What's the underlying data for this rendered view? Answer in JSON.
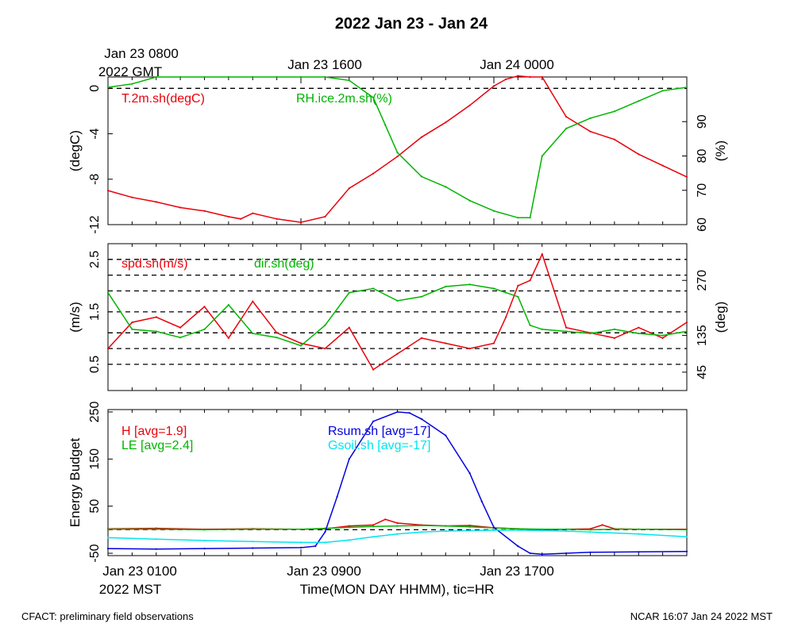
{
  "title": "2022 Jan 23 - Jan 24",
  "top_axis": {
    "ticks": [
      "Jan 23 0800",
      "Jan 23 1600",
      "Jan 24 0000"
    ],
    "year_label": "2022 GMT"
  },
  "bottom_axis": {
    "ticks": [
      "Jan 23 0100",
      "Jan 23 0900",
      "Jan 23 1700"
    ],
    "year_label": "2022 MST",
    "xlabel": "Time(MON DAY HHMM), tic=HR"
  },
  "footer": {
    "left": "CFACT: preliminary field observations",
    "right": "NCAR 16:07 Jan 24 2022 MST"
  },
  "colors": {
    "red": "#e8000b",
    "green": "#00b400",
    "blue": "#0000e0",
    "cyan": "#00e5ee"
  },
  "chart_data": [
    {
      "type": "line",
      "panel": "temperature-humidity",
      "x_range_hours": [
        0,
        24
      ],
      "ylabel": "(degC)",
      "ylim": [
        -12,
        1
      ],
      "yticks": [
        "0",
        "-4",
        "-8",
        "-12"
      ],
      "ylabel_right": "(%)",
      "ylim_right": [
        60,
        103
      ],
      "yticks_right": [
        "90",
        "80",
        "70",
        "60"
      ],
      "reference_line": 0,
      "series": [
        {
          "name": "T.2m.sh(degC)",
          "color": "red",
          "axis": "left",
          "x": [
            0,
            1,
            2,
            3,
            4,
            5,
            5.5,
            6,
            7,
            8,
            9,
            10,
            11,
            12,
            13,
            14,
            15,
            16,
            16.5,
            17,
            17.5,
            18,
            19,
            20,
            21,
            22,
            23,
            24
          ],
          "values": [
            -9.0,
            -9.6,
            -10.0,
            -10.5,
            -10.8,
            -11.3,
            -11.5,
            -11.0,
            -11.5,
            -11.8,
            -11.3,
            -8.8,
            -7.5,
            -6.0,
            -4.3,
            -3.0,
            -1.5,
            0.2,
            0.8,
            1.1,
            1.0,
            1.0,
            -2.5,
            -3.8,
            -4.5,
            -5.8,
            -6.8,
            -7.8
          ]
        },
        {
          "name": "RH.ice.2m.sh(%)",
          "color": "green",
          "axis": "right",
          "x": [
            0,
            1,
            2,
            3,
            4,
            5,
            6,
            7,
            8,
            9,
            10,
            11,
            11.5,
            12,
            13,
            14,
            15,
            16,
            17,
            17.5,
            18,
            19,
            20,
            21,
            22,
            23,
            24
          ],
          "values": [
            100,
            101,
            103,
            103,
            103,
            103,
            103,
            103,
            103,
            103,
            102,
            97,
            89,
            81,
            74,
            71,
            67,
            64,
            62,
            62,
            80,
            88,
            91,
            93,
            96,
            99,
            100
          ]
        }
      ]
    },
    {
      "type": "line",
      "panel": "wind",
      "x_range_hours": [
        0,
        24
      ],
      "ylabel": "(m/s)",
      "ylim": [
        0,
        2.8
      ],
      "yticks": [
        "2.5",
        "1.5",
        "0.5"
      ],
      "ylabel_right": "(deg)",
      "ylim_right": [
        0,
        360
      ],
      "yticks_right": [
        "270",
        "135",
        "45"
      ],
      "gridlines": [
        0.5,
        0.8,
        1.1,
        1.5,
        1.9,
        2.2,
        2.5
      ],
      "series": [
        {
          "name": "spd.sh(m/s)",
          "color": "red",
          "axis": "left",
          "x": [
            0,
            1,
            2,
            3,
            4,
            5,
            6,
            7,
            8,
            9,
            10,
            11,
            12,
            13,
            14,
            15,
            16,
            16.5,
            17,
            17.5,
            18,
            19,
            20,
            21,
            22,
            23,
            24
          ],
          "values": [
            0.8,
            1.3,
            1.4,
            1.2,
            1.6,
            1.0,
            1.7,
            1.1,
            0.9,
            0.8,
            1.2,
            0.4,
            0.7,
            1.0,
            0.9,
            0.8,
            0.9,
            1.4,
            2.0,
            2.1,
            2.6,
            1.2,
            1.1,
            1.0,
            1.2,
            1.0,
            1.3
          ]
        },
        {
          "name": "dir.sh(deg)",
          "color": "green",
          "axis": "right",
          "x": [
            0,
            1,
            2,
            3,
            4,
            5,
            6,
            7,
            8,
            9,
            10,
            11,
            12,
            13,
            14,
            15,
            16,
            16.5,
            17,
            17.5,
            18,
            19,
            20,
            21,
            22,
            23,
            24
          ],
          "values": [
            240,
            150,
            145,
            130,
            150,
            210,
            140,
            130,
            110,
            160,
            240,
            250,
            220,
            230,
            255,
            260,
            250,
            240,
            230,
            160,
            150,
            145,
            140,
            150,
            140,
            135,
            145
          ]
        }
      ]
    },
    {
      "type": "line",
      "panel": "energy-budget",
      "x_range_hours": [
        0,
        24
      ],
      "ylabel": "Energy Budget",
      "ylim": [
        -55,
        255
      ],
      "yticks": [
        "250",
        "150",
        "50",
        "-50"
      ],
      "reference_line": 0,
      "series": [
        {
          "name": "H [avg=1.9]",
          "color": "red",
          "x": [
            0,
            2,
            4,
            6,
            8,
            9,
            10,
            11,
            11.5,
            12,
            13,
            14,
            15,
            16,
            17,
            18,
            19,
            20,
            20.5,
            21,
            22,
            24
          ],
          "values": [
            2,
            3,
            1,
            2,
            1,
            2,
            8,
            10,
            22,
            14,
            10,
            8,
            9,
            4,
            2,
            0,
            1,
            2,
            10,
            2,
            1,
            1
          ]
        },
        {
          "name": "LE [avg=2.4]",
          "color": "green",
          "x": [
            0,
            2,
            4,
            6,
            8,
            9,
            10,
            11,
            12,
            13,
            14,
            15,
            16,
            17,
            18,
            19,
            20,
            21,
            22,
            24
          ],
          "values": [
            1,
            1,
            0,
            1,
            1,
            3,
            5,
            7,
            8,
            9,
            8,
            6,
            4,
            2,
            1,
            1,
            0,
            1,
            1,
            0
          ]
        },
        {
          "name": "Rsum.sh [avg=17]",
          "color": "blue",
          "x": [
            0,
            2,
            4,
            6,
            8,
            8.6,
            9,
            9.5,
            10,
            11,
            12,
            12.5,
            13,
            14,
            15,
            15.5,
            16,
            17,
            17.5,
            18,
            19,
            20,
            22,
            24
          ],
          "values": [
            -40,
            -41,
            -40,
            -39,
            -38,
            -35,
            -5,
            70,
            150,
            230,
            250,
            248,
            235,
            200,
            120,
            60,
            5,
            -35,
            -50,
            -52,
            -50,
            -48,
            -47,
            -46
          ]
        },
        {
          "name": "Gsoil.sh [avg=-17]",
          "color": "cyan",
          "x": [
            0,
            2,
            4,
            6,
            8,
            9,
            10,
            11,
            12,
            13,
            14,
            15,
            16,
            17,
            18,
            19,
            20,
            22,
            24
          ],
          "values": [
            -17,
            -20,
            -23,
            -25,
            -27,
            -27,
            -22,
            -15,
            -9,
            -5,
            -3,
            -2,
            -1,
            -1,
            -2,
            -3,
            -5,
            -9,
            -15
          ]
        }
      ]
    }
  ]
}
